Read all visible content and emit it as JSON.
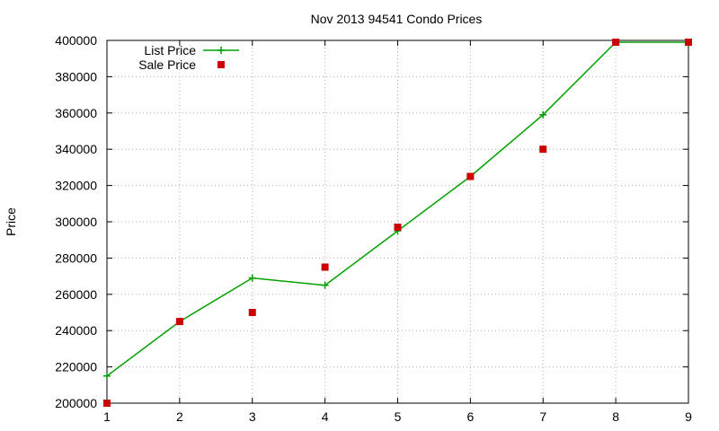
{
  "chart_data": {
    "type": "line",
    "title": "Nov 2013 94541 Condo Prices",
    "xlabel": "",
    "ylabel": "Price",
    "xlim": [
      1,
      9
    ],
    "ylim": [
      200000,
      400000
    ],
    "x_ticks": [
      1,
      2,
      3,
      4,
      5,
      6,
      7,
      8,
      9
    ],
    "y_ticks": [
      200000,
      220000,
      240000,
      260000,
      280000,
      300000,
      320000,
      340000,
      360000,
      380000,
      400000
    ],
    "grid": true,
    "legend_position": "top-left",
    "series": [
      {
        "name": "List Price",
        "style": "line+cross",
        "color": "#00a000",
        "x": [
          1,
          2,
          3,
          4,
          5,
          6,
          7,
          8,
          9
        ],
        "y": [
          215000,
          245000,
          269000,
          265000,
          295000,
          325000,
          359000,
          399000,
          399000
        ]
      },
      {
        "name": "Sale Price",
        "style": "square",
        "color": "#cc0000",
        "x": [
          1,
          2,
          3,
          4,
          5,
          6,
          7,
          8,
          9
        ],
        "y": [
          200000,
          245000,
          250000,
          275000,
          297000,
          325000,
          340000,
          399000,
          399000
        ]
      }
    ]
  }
}
